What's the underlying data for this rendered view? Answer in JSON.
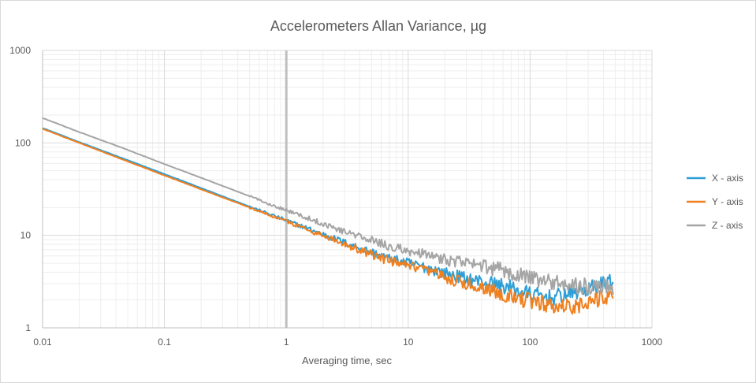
{
  "chart_data": {
    "type": "line",
    "title": "Accelerometers Allan Variance, µg",
    "xlabel": "Averaging time, sec",
    "ylabel": "",
    "x_scale": "log",
    "y_scale": "log",
    "xlim": [
      0.01,
      1000
    ],
    "ylim": [
      1,
      1000
    ],
    "x_ticks": [
      "0.01",
      "0.1",
      "1",
      "10",
      "100",
      "1000"
    ],
    "y_ticks": [
      "1",
      "10",
      "100",
      "1000"
    ],
    "grid": true,
    "minor_grid": true,
    "legend_position": "right",
    "highlight_line_x": 1,
    "series": [
      {
        "name": "X - axis",
        "color": "#2e9fd6",
        "points": [
          [
            0.01,
            145
          ],
          [
            0.02,
            102
          ],
          [
            0.05,
            65
          ],
          [
            0.1,
            46
          ],
          [
            0.2,
            32.5
          ],
          [
            0.5,
            20.5
          ],
          [
            1,
            14.5
          ],
          [
            2,
            10.3
          ],
          [
            3,
            8.4
          ],
          [
            5,
            6.6
          ],
          [
            7,
            5.6
          ],
          [
            10,
            5.0
          ],
          [
            15,
            4.4
          ],
          [
            20,
            3.9
          ],
          [
            30,
            3.4
          ],
          [
            50,
            3.0
          ],
          [
            70,
            2.7
          ],
          [
            100,
            2.3
          ],
          [
            130,
            2.15
          ],
          [
            150,
            2.1
          ],
          [
            200,
            2.3
          ],
          [
            250,
            2.5
          ],
          [
            300,
            2.6
          ],
          [
            400,
            3.0
          ],
          [
            480,
            3.4
          ]
        ]
      },
      {
        "name": "Y - axis",
        "color": "#f07f1e",
        "points": [
          [
            0.01,
            142
          ],
          [
            0.02,
            100
          ],
          [
            0.05,
            63
          ],
          [
            0.1,
            44.5
          ],
          [
            0.2,
            31.5
          ],
          [
            0.5,
            20
          ],
          [
            1,
            14.2
          ],
          [
            2,
            10
          ],
          [
            3,
            8.1
          ],
          [
            5,
            6.2
          ],
          [
            7,
            5.3
          ],
          [
            10,
            4.6
          ],
          [
            15,
            4.0
          ],
          [
            20,
            3.5
          ],
          [
            30,
            3.0
          ],
          [
            50,
            2.55
          ],
          [
            70,
            2.2
          ],
          [
            100,
            1.95
          ],
          [
            130,
            1.8
          ],
          [
            150,
            1.75
          ],
          [
            200,
            1.7
          ],
          [
            250,
            1.75
          ],
          [
            300,
            1.9
          ],
          [
            400,
            2.1
          ],
          [
            480,
            2.3
          ]
        ]
      },
      {
        "name": "Z - axis",
        "color": "#a5a5a5",
        "points": [
          [
            0.01,
            186
          ],
          [
            0.02,
            131
          ],
          [
            0.05,
            84
          ],
          [
            0.1,
            59
          ],
          [
            0.2,
            42
          ],
          [
            0.5,
            26.5
          ],
          [
            1,
            18.7
          ],
          [
            2,
            13.4
          ],
          [
            3,
            11
          ],
          [
            5,
            8.8
          ],
          [
            7,
            7.6
          ],
          [
            10,
            6.8
          ],
          [
            15,
            6.0
          ],
          [
            20,
            5.5
          ],
          [
            30,
            5.0
          ],
          [
            50,
            4.4
          ],
          [
            70,
            4.0
          ],
          [
            100,
            3.5
          ],
          [
            130,
            3.2
          ],
          [
            150,
            3.1
          ],
          [
            200,
            2.95
          ],
          [
            250,
            2.85
          ],
          [
            300,
            2.8
          ],
          [
            400,
            3.0
          ],
          [
            480,
            2.6
          ]
        ]
      }
    ]
  }
}
